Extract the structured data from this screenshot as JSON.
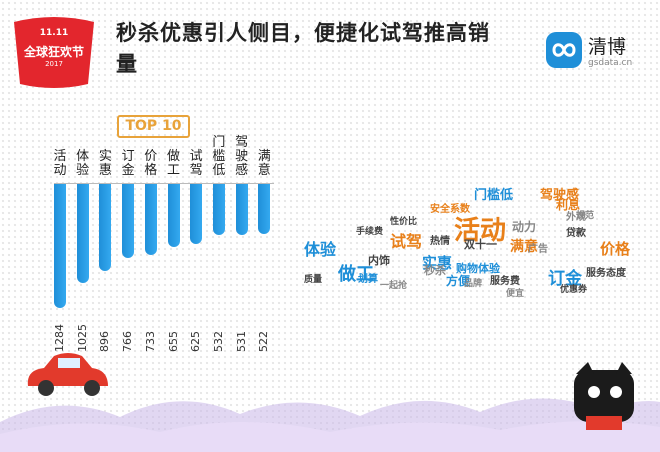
{
  "title": "秒杀优惠引人侧目，便捷化试驾推高销量",
  "badge": {
    "label": "全球狂欢节",
    "top": "11.11",
    "year": "2017"
  },
  "brand": {
    "name": "清博",
    "url": "gsdata.cn"
  },
  "top_label": "TOP 10",
  "chart_data": {
    "type": "bar",
    "categories": [
      "活动",
      "体验",
      "实惠",
      "订金",
      "价格",
      "做工",
      "试驾",
      "门槛低",
      "驾驶感",
      "满意"
    ],
    "values": [
      1284,
      1025,
      896,
      766,
      733,
      655,
      625,
      532,
      531,
      522
    ],
    "title": "TOP 10"
  },
  "wordcloud": [
    {
      "t": "活动",
      "c": "#e8801a",
      "s": 26
    },
    {
      "t": "体验",
      "c": "#1f8fd8",
      "s": 16
    },
    {
      "t": "试驾",
      "c": "#e8801a",
      "s": 16
    },
    {
      "t": "做工",
      "c": "#1f8fd8",
      "s": 18
    },
    {
      "t": "实惠",
      "c": "#1f8fd8",
      "s": 15
    },
    {
      "t": "订金",
      "c": "#1f8fd8",
      "s": 17
    },
    {
      "t": "价格",
      "c": "#e8801a",
      "s": 15
    },
    {
      "t": "满意",
      "c": "#e8801a",
      "s": 14
    },
    {
      "t": "门槛低",
      "c": "#1f8fd8",
      "s": 13
    },
    {
      "t": "驾驶感",
      "c": "#e8801a",
      "s": 13
    },
    {
      "t": "利息",
      "c": "#e8801a",
      "s": 12
    },
    {
      "t": "购物体验",
      "c": "#1f8fd8",
      "s": 11
    },
    {
      "t": "服务态度",
      "c": "#444",
      "s": 10
    },
    {
      "t": "安全系数",
      "c": "#e8801a",
      "s": 10
    },
    {
      "t": "双十一",
      "c": "#444",
      "s": 11
    },
    {
      "t": "服务费",
      "c": "#444",
      "s": 10
    },
    {
      "t": "方便",
      "c": "#1f8fd8",
      "s": 12
    },
    {
      "t": "内饰",
      "c": "#444",
      "s": 11
    },
    {
      "t": "动力",
      "c": "#888",
      "s": 12
    },
    {
      "t": "贷款",
      "c": "#444",
      "s": 10
    },
    {
      "t": "广告",
      "c": "#888",
      "s": 10
    },
    {
      "t": "热情",
      "c": "#444",
      "s": 10
    },
    {
      "t": "性价比",
      "c": "#444",
      "s": 9
    },
    {
      "t": "规范",
      "c": "#888",
      "s": 9
    },
    {
      "t": "外观",
      "c": "#888",
      "s": 10
    },
    {
      "t": "优惠券",
      "c": "#444",
      "s": 9
    },
    {
      "t": "质量",
      "c": "#444",
      "s": 9
    },
    {
      "t": "秒杀",
      "c": "#888",
      "s": 11
    },
    {
      "t": "品牌",
      "c": "#888",
      "s": 9
    },
    {
      "t": "手续费",
      "c": "#444",
      "s": 9
    },
    {
      "t": "划算",
      "c": "#1f8fd8",
      "s": 10
    },
    {
      "t": "一起抢",
      "c": "#888",
      "s": 9
    },
    {
      "t": "便宜",
      "c": "#888",
      "s": 9
    }
  ]
}
